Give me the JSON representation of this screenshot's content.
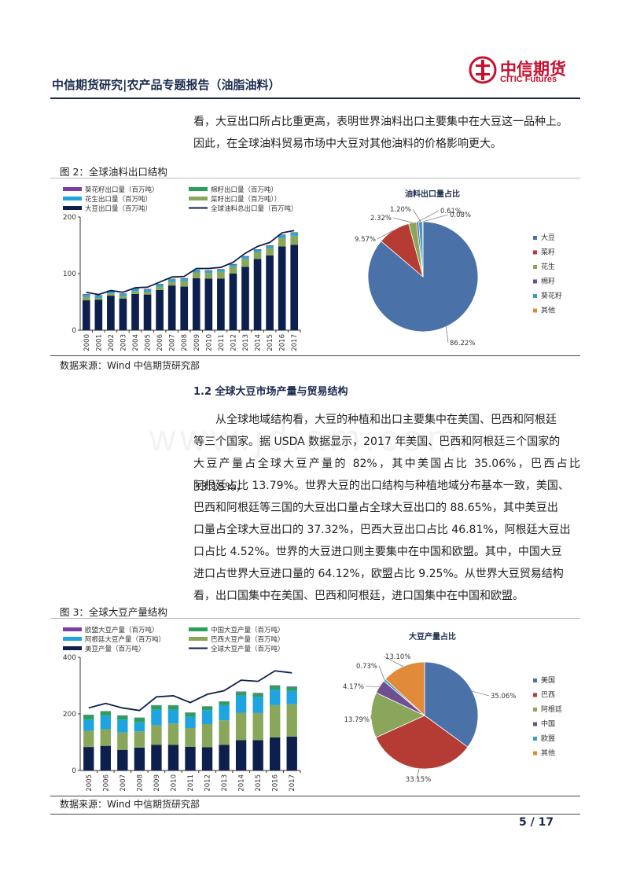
{
  "header": {
    "title": "中信期货研究|农产品专题报告（油脂油料）",
    "logo_cn": "中信期货",
    "logo_en": "CITIC Futures"
  },
  "watermark": "www.jdiam.com",
  "intro": {
    "line1": "看，大豆出口所占比重更高，表明世界油料出口主要集中在大豆这一品种上。",
    "line2": "因此，在全球油料贸易市场中大豆对其他油料的价格影响更大。"
  },
  "figure2": {
    "title": "图 2：全球油料出口结构",
    "source": "数据来源：Wind  中信期货研究部"
  },
  "section": {
    "heading": "1.2  全球大豆市场产量与贸易结构",
    "lines": [
      "从全球地域结构看，大豆的种植和出口主要集中在美国、巴西和阿根廷",
      "等三个国家。据 USDA 数据显示，2017 年美国、巴西和阿根廷三个国家的",
      "大豆产量占全球大豆产量的 82%，其中美国占比 35.06%，巴西占比 33.15%，",
      "阿根廷占比 13.79%。世界大豆的出口结构与种植地域分布基本一致，美国、",
      "巴西和阿根廷等三国的大豆出口量占全球大豆出口的  88.65%，其中美豆出",
      "口量占全球大豆出口的 37.32%，巴西大豆出口占比 46.81%，阿根廷大豆出",
      "口占比 4.52%。世界的大豆进口则主要集中在中国和欧盟。其中，中国大豆",
      "进口占世界大豆进口量的 64.12%，欧盟占比 9.25%。从世界大豆贸易结构",
      "看，出口国集中在美国、巴西和阿根廷，进口国集中在中国和欧盟。"
    ]
  },
  "figure3": {
    "title": "图 3：全球大豆产量结构",
    "source": "数据来源：Wind  中信期货研究部"
  },
  "footer": {
    "page": "5 / 17"
  },
  "chart_data": [
    {
      "id": "oilseed-exports",
      "type": "bar",
      "stacked": true,
      "title": "",
      "ylim": [
        0,
        200
      ],
      "yticks": [
        0,
        100,
        200
      ],
      "categories": [
        "2000",
        "2001",
        "2002",
        "2003",
        "2004",
        "2005",
        "2006",
        "2007",
        "2008",
        "2009",
        "2010",
        "2011",
        "2012",
        "2013",
        "2014",
        "2015",
        "2016",
        "2017"
      ],
      "series": [
        {
          "name": "大豆出口量（百万吨）",
          "color": "#0d1f4c",
          "values": [
            53,
            54,
            61,
            56,
            64,
            63,
            71,
            79,
            77,
            92,
            91,
            91,
            100,
            112,
            126,
            132,
            148,
            151
          ]
        },
        {
          "name": "菜籽出口量（百万吨））",
          "color": "#8aa65a",
          "values": [
            6,
            3,
            4,
            4,
            5,
            5,
            6,
            7,
            10,
            10,
            10,
            12,
            12,
            14,
            12,
            13,
            15,
            16
          ]
        },
        {
          "name": "花生出口量（百万吨）",
          "color": "#1ea4e0",
          "values": [
            3,
            3,
            3,
            3,
            3,
            3,
            3,
            3,
            3,
            3,
            3,
            3,
            3,
            3,
            3,
            3,
            4,
            4
          ]
        },
        {
          "name": "棉籽出口量（百万吨）",
          "color": "#2aa05a",
          "values": [
            1,
            1,
            1,
            1,
            1,
            1,
            1,
            1,
            1,
            1,
            1,
            1,
            1,
            1,
            1,
            1,
            1,
            1
          ]
        },
        {
          "name": "葵花籽出口量（百万吨）",
          "color": "#7b3d9e",
          "values": [
            1,
            1,
            1,
            1,
            1,
            1,
            1,
            1,
            1,
            1,
            1,
            1,
            1,
            1,
            1,
            1,
            1,
            1
          ]
        }
      ],
      "line": {
        "name": "全球油料总出口量（百万吨）",
        "color": "#0d1f4c",
        "values": [
          67,
          63,
          70,
          67,
          75,
          76,
          85,
          94,
          95,
          109,
          109,
          111,
          120,
          136,
          148,
          155,
          172,
          176
        ]
      },
      "legend": "top"
    },
    {
      "id": "oilseed-export-share",
      "type": "pie",
      "title": "油料出口量占比",
      "labels": [
        "大豆",
        "菜籽",
        "花生",
        "棉籽",
        "葵花籽",
        "其他"
      ],
      "values": [
        86.22,
        9.57,
        2.32,
        0.61,
        1.2,
        0.08
      ],
      "value_labels": [
        "86.22%",
        "9.57%",
        "2.32%",
        "0.61%",
        "1.20%",
        "0.08%"
      ],
      "colors": [
        "#4a72a8",
        "#b43c34",
        "#8aa65a",
        "#6e4f91",
        "#3aa0b8",
        "#e08a3a"
      ],
      "legend": "right"
    },
    {
      "id": "soybean-production",
      "type": "bar",
      "stacked": true,
      "title": "",
      "ylim": [
        0,
        400
      ],
      "yticks": [
        0,
        200,
        400
      ],
      "categories": [
        "2005",
        "2006",
        "2007",
        "2008",
        "2009",
        "2010",
        "2011",
        "2012",
        "2013",
        "2014",
        "2015",
        "2016",
        "2017"
      ],
      "series": [
        {
          "name": "美豆产量（百万吨）",
          "color": "#0d1f4c",
          "values": [
            83,
            87,
            73,
            81,
            91,
            91,
            84,
            82,
            91,
            107,
            107,
            117,
            120
          ]
        },
        {
          "name": "巴西大豆产量（百万吨）",
          "color": "#8aa65a",
          "values": [
            57,
            59,
            61,
            57,
            69,
            75,
            66,
            82,
            86,
            97,
            96,
            114,
            114
          ]
        },
        {
          "name": "阿根廷大豆产量（百万吨）",
          "color": "#1ea4e0",
          "values": [
            40,
            48,
            46,
            32,
            55,
            49,
            40,
            49,
            54,
            61,
            57,
            55,
            47
          ]
        },
        {
          "name": "中国大豆产量（百万吨）",
          "color": "#2aa05a",
          "values": [
            16,
            15,
            14,
            16,
            15,
            15,
            14,
            13,
            12,
            12,
            12,
            13,
            14
          ]
        },
        {
          "name": "欧盟大豆产量（百万吨）",
          "color": "#7b3d9e",
          "values": [
            1,
            1,
            1,
            1,
            1,
            1,
            1,
            1,
            1,
            2,
            2,
            2,
            2
          ]
        }
      ],
      "line": {
        "name": "全球大豆产量（百万吨）",
        "color": "#0d1f4c",
        "values": [
          221,
          237,
          221,
          212,
          260,
          264,
          240,
          269,
          282,
          319,
          315,
          352,
          345
        ]
      },
      "legend": "top"
    },
    {
      "id": "soybean-production-share",
      "type": "pie",
      "title": "大豆产量占比",
      "labels": [
        "美国",
        "巴西",
        "阿根廷",
        "中国",
        "欧盟",
        "其他"
      ],
      "values": [
        35.06,
        33.15,
        13.79,
        4.17,
        0.73,
        13.1
      ],
      "value_labels": [
        "35.06%",
        "33.15%",
        "13.79%",
        "4.17%",
        "0.73%",
        "13.10%"
      ],
      "colors": [
        "#4a72a8",
        "#b43c34",
        "#8aa65a",
        "#6e4f91",
        "#3aa0b8",
        "#e08a3a"
      ],
      "legend": "right"
    }
  ]
}
